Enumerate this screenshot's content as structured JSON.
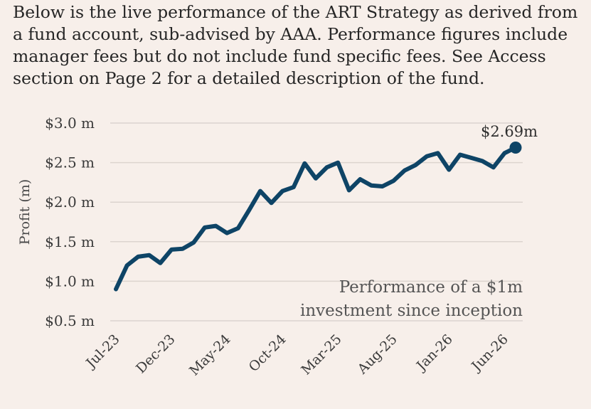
{
  "intro_text": "Below is the live performance of the ART Strategy as derived from a fund account, sub-advised by AAA. Performance figures include manager fees but do not include fund specific fees. See Access section on Page 2 for a detailed description of the fund.",
  "colors": {
    "line": "#0e4466",
    "grid": "#dcd4cf",
    "background": "#f7efea"
  },
  "chart_data": {
    "type": "line",
    "ylabel": "Profit (m)",
    "ylim": [
      0.5,
      3.0
    ],
    "y_ticks": [
      {
        "value": 3.0,
        "label": "$3.0 m"
      },
      {
        "value": 2.5,
        "label": "$2.5 m"
      },
      {
        "value": 2.0,
        "label": "$2.0 m"
      },
      {
        "value": 1.5,
        "label": "$1.5 m"
      },
      {
        "value": 1.0,
        "label": "$1.0 m"
      },
      {
        "value": 0.5,
        "label": "$0.5 m"
      }
    ],
    "x_ticks": [
      "Jul-23",
      "Dec-23",
      "May-24",
      "Oct-24",
      "Mar-25",
      "Aug-25",
      "Jan-26",
      "Jun-26"
    ],
    "x_tick_every": 5,
    "grid": true,
    "annotation": [
      "Performance of a $1m",
      "investment since inception"
    ],
    "end_label": "$2.69m",
    "series": [
      {
        "values": [
          0.9,
          1.2,
          1.31,
          1.33,
          1.23,
          1.4,
          1.41,
          1.49,
          1.68,
          1.7,
          1.61,
          1.67,
          1.9,
          2.14,
          1.99,
          2.14,
          2.19,
          2.49,
          2.3,
          2.44,
          2.5,
          2.15,
          2.29,
          2.21,
          2.2,
          2.27,
          2.4,
          2.47,
          2.58,
          2.62,
          2.41,
          2.6,
          2.56,
          2.52,
          2.44,
          2.62,
          2.69
        ]
      }
    ]
  }
}
